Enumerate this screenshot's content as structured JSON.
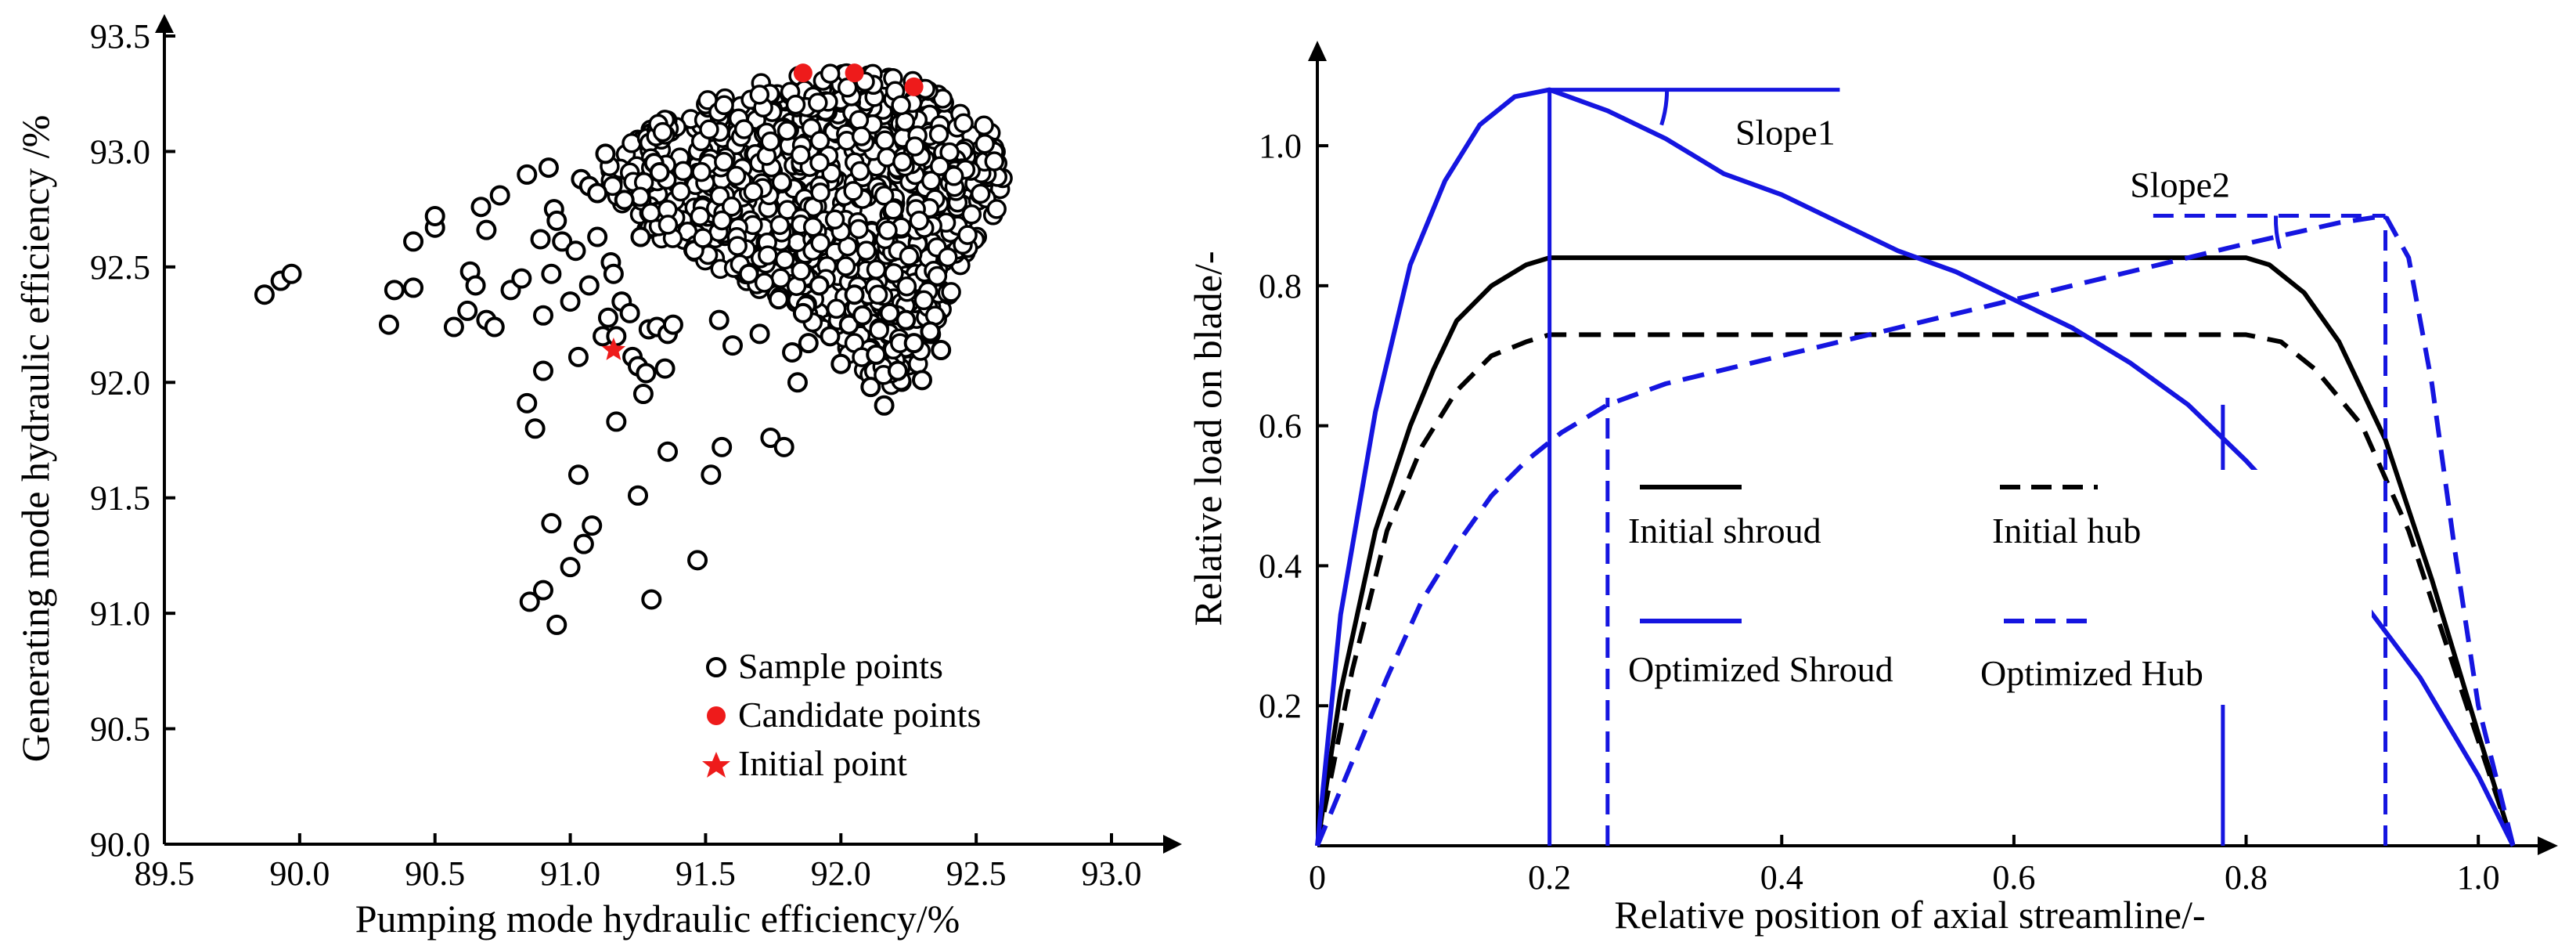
{
  "chart_data": [
    {
      "type": "scatter",
      "xlabel": "Pumping mode hydraulic efficiency/%",
      "ylabel": "Generating mode hydraulic efficiency /%",
      "xlim": [
        89.5,
        93.0
      ],
      "ylim": [
        90.0,
        93.5
      ],
      "xticks": [
        "89.5",
        "90.0",
        "90.5",
        "91.0",
        "91.5",
        "92.0",
        "92.5",
        "93.0"
      ],
      "yticks": [
        "90.0",
        "90.5",
        "91.0",
        "91.5",
        "92.0",
        "92.5",
        "93.0",
        "93.5"
      ],
      "legend_position": "bottom-right",
      "series": [
        {
          "name": "Sample points",
          "marker": "open-circle",
          "color": "#000000",
          "points": [
            [
              89.87,
              92.38
            ],
            [
              89.93,
              92.44
            ],
            [
              89.97,
              92.47
            ],
            [
              90.33,
              92.25
            ],
            [
              90.35,
              92.4
            ],
            [
              90.42,
              92.41
            ],
            [
              90.42,
              92.61
            ],
            [
              90.5,
              92.67
            ],
            [
              90.5,
              92.72
            ],
            [
              90.57,
              92.24
            ],
            [
              90.62,
              92.31
            ],
            [
              90.63,
              92.48
            ],
            [
              90.65,
              92.42
            ],
            [
              90.67,
              92.76
            ],
            [
              90.69,
              92.66
            ],
            [
              90.69,
              92.27
            ],
            [
              90.72,
              92.24
            ],
            [
              90.74,
              92.81
            ],
            [
              90.78,
              92.4
            ],
            [
              90.82,
              92.45
            ],
            [
              90.84,
              92.9
            ],
            [
              90.84,
              91.91
            ],
            [
              90.85,
              91.05
            ],
            [
              90.87,
              91.8
            ],
            [
              90.89,
              92.62
            ],
            [
              90.9,
              92.29
            ],
            [
              90.9,
              92.05
            ],
            [
              90.9,
              91.1
            ],
            [
              90.92,
              92.93
            ],
            [
              90.93,
              92.47
            ],
            [
              90.93,
              91.39
            ],
            [
              90.94,
              92.75
            ],
            [
              90.95,
              92.7
            ],
            [
              90.95,
              90.95
            ],
            [
              90.97,
              92.61
            ],
            [
              91.0,
              92.35
            ],
            [
              91.0,
              91.2
            ],
            [
              91.02,
              92.57
            ],
            [
              91.03,
              92.11
            ],
            [
              91.03,
              91.6
            ],
            [
              91.04,
              92.88
            ],
            [
              91.05,
              91.3
            ],
            [
              91.07,
              92.85
            ],
            [
              91.07,
              92.42
            ],
            [
              91.08,
              91.38
            ],
            [
              91.1,
              92.82
            ],
            [
              91.1,
              92.63
            ],
            [
              91.12,
              92.2
            ],
            [
              91.13,
              92.99
            ],
            [
              91.14,
              92.28
            ],
            [
              91.15,
              92.52
            ],
            [
              91.16,
              92.47
            ],
            [
              91.17,
              91.83
            ],
            [
              91.17,
              92.2
            ],
            [
              91.19,
              92.35
            ],
            [
              91.2,
              92.79
            ],
            [
              91.22,
              92.3
            ],
            [
              91.23,
              92.11
            ],
            [
              91.25,
              92.07
            ],
            [
              91.25,
              91.51
            ],
            [
              91.26,
              92.63
            ],
            [
              91.27,
              91.95
            ],
            [
              91.28,
              92.04
            ],
            [
              91.29,
              92.23
            ],
            [
              91.3,
              91.06
            ],
            [
              91.31,
              92.95
            ],
            [
              91.32,
              92.24
            ],
            [
              91.33,
              92.91
            ],
            [
              91.35,
              92.06
            ],
            [
              91.36,
              92.21
            ],
            [
              91.36,
              91.7
            ],
            [
              91.38,
              92.25
            ],
            [
              91.47,
              91.23
            ],
            [
              91.52,
              91.6
            ],
            [
              91.55,
              92.27
            ],
            [
              91.56,
              91.72
            ],
            [
              91.6,
              92.16
            ],
            [
              91.66,
              92.47
            ],
            [
              91.7,
              92.21
            ],
            [
              91.74,
              91.76
            ],
            [
              91.77,
              92.36
            ],
            [
              91.79,
              91.72
            ],
            [
              91.82,
              92.13
            ],
            [
              91.84,
              92.0
            ],
            [
              91.86,
              92.3
            ],
            [
              91.88,
              92.17
            ],
            [
              91.92,
              92.42
            ],
            [
              91.96,
              92.2
            ],
            [
              92.0,
              92.08
            ],
            [
              92.03,
              92.25
            ],
            [
              92.05,
              92.38
            ],
            [
              92.08,
              92.29
            ],
            [
              92.11,
              91.98
            ],
            [
              92.13,
              92.12
            ],
            [
              92.16,
              91.9
            ],
            [
              92.18,
              92.3
            ],
            [
              92.21,
              92.05
            ],
            [
              92.24,
              92.27
            ],
            [
              92.27,
              92.17
            ],
            [
              92.3,
              92.01
            ],
            [
              92.33,
              92.22
            ],
            [
              92.37,
              92.14
            ]
          ]
        },
        {
          "name": "Candidate points",
          "marker": "filled-circle",
          "color": "#ee1b1b",
          "points": [
            [
              91.86,
              93.34
            ],
            [
              92.05,
              93.34
            ],
            [
              92.27,
              93.28
            ]
          ]
        },
        {
          "name": "Initial point",
          "marker": "star",
          "color": "#ee1b1b",
          "points": [
            [
              91.16,
              92.14
            ]
          ]
        }
      ],
      "dense_cluster_note_free": true,
      "cluster_envelope": [
        [
          91.12,
          92.95
        ],
        [
          91.3,
          93.12
        ],
        [
          91.5,
          93.22
        ],
        [
          91.7,
          93.3
        ],
        [
          91.9,
          93.34
        ],
        [
          92.1,
          93.34
        ],
        [
          92.3,
          93.3
        ],
        [
          92.45,
          93.2
        ],
        [
          92.57,
          93.08
        ],
        [
          92.62,
          92.92
        ],
        [
          92.58,
          92.75
        ],
        [
          92.47,
          92.55
        ],
        [
          92.4,
          92.35
        ],
        [
          92.33,
          92.15
        ],
        [
          92.22,
          91.97
        ],
        [
          92.12,
          92.0
        ],
        [
          92.0,
          92.15
        ],
        [
          91.85,
          92.3
        ],
        [
          91.65,
          92.42
        ],
        [
          91.48,
          92.52
        ],
        [
          91.3,
          92.62
        ],
        [
          91.18,
          92.78
        ]
      ]
    },
    {
      "type": "line",
      "xlabel": "Relative position of axial streamline/-",
      "ylabel": "Relative load on blade/-",
      "xlim": [
        0,
        1.07
      ],
      "ylim": [
        0,
        1.15
      ],
      "xticks": [
        "0",
        "0.2",
        "0.4",
        "0.6",
        "0.8",
        "1.0"
      ],
      "yticks": [
        "0.2",
        "0.4",
        "0.6",
        "0.8",
        "1.0"
      ],
      "annotations": [
        "Slope1",
        "Slope2"
      ],
      "series": [
        {
          "name": "Initial shroud",
          "color": "#000000",
          "style": "solid",
          "x": [
            0,
            0.02,
            0.05,
            0.08,
            0.1,
            0.12,
            0.15,
            0.18,
            0.2,
            0.4,
            0.6,
            0.8,
            0.82,
            0.85,
            0.88,
            0.92,
            0.96,
            1.0,
            1.03
          ],
          "y": [
            0,
            0.22,
            0.45,
            0.6,
            0.68,
            0.75,
            0.8,
            0.83,
            0.84,
            0.84,
            0.84,
            0.84,
            0.83,
            0.79,
            0.72,
            0.58,
            0.38,
            0.16,
            0
          ]
        },
        {
          "name": "Initial hub",
          "color": "#000000",
          "style": "dashed",
          "x": [
            0,
            0.03,
            0.06,
            0.09,
            0.12,
            0.15,
            0.18,
            0.2,
            0.4,
            0.6,
            0.8,
            0.83,
            0.86,
            0.9,
            0.94,
            0.98,
            1.03
          ],
          "y": [
            0,
            0.25,
            0.45,
            0.57,
            0.65,
            0.7,
            0.72,
            0.73,
            0.73,
            0.73,
            0.73,
            0.72,
            0.68,
            0.6,
            0.45,
            0.25,
            0
          ]
        },
        {
          "name": "Optimized Shroud",
          "color": "#1515e0",
          "style": "solid",
          "x": [
            0,
            0.02,
            0.05,
            0.08,
            0.11,
            0.14,
            0.17,
            0.2,
            0.25,
            0.3,
            0.35,
            0.4,
            0.45,
            0.5,
            0.55,
            0.6,
            0.65,
            0.7,
            0.75,
            0.8,
            0.85,
            0.9,
            0.95,
            1.0,
            1.03
          ],
          "y": [
            0,
            0.33,
            0.62,
            0.83,
            0.95,
            1.03,
            1.07,
            1.08,
            1.05,
            1.01,
            0.96,
            0.93,
            0.89,
            0.85,
            0.82,
            0.78,
            0.74,
            0.69,
            0.63,
            0.55,
            0.46,
            0.35,
            0.24,
            0.1,
            0
          ]
        },
        {
          "name": "Optimized Hub",
          "color": "#1515e0",
          "style": "dashed",
          "x": [
            0,
            0.03,
            0.06,
            0.09,
            0.12,
            0.15,
            0.18,
            0.21,
            0.25,
            0.3,
            0.4,
            0.5,
            0.6,
            0.7,
            0.8,
            0.88,
            0.92,
            0.94,
            0.96,
            0.98,
            1.0,
            1.03
          ],
          "y": [
            0,
            0.12,
            0.24,
            0.35,
            0.43,
            0.5,
            0.55,
            0.59,
            0.63,
            0.66,
            0.7,
            0.74,
            0.78,
            0.82,
            0.86,
            0.89,
            0.9,
            0.84,
            0.66,
            0.42,
            0.2,
            0
          ]
        }
      ]
    }
  ]
}
